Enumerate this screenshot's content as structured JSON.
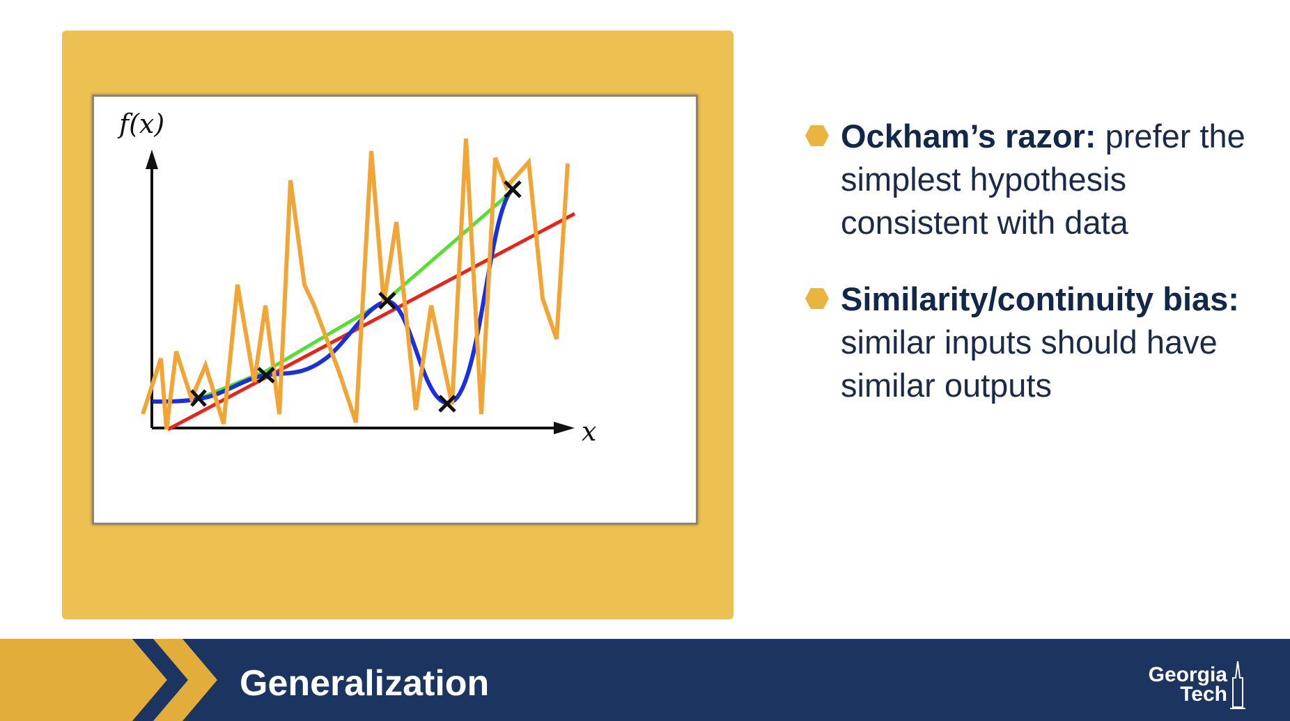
{
  "figure": {
    "y_axis_label": "f(x)",
    "x_axis_label": "x",
    "colors": {
      "axes": "#111111",
      "noisy_fit": "#f0a535",
      "linear_fit": "#e8231a",
      "piecewise_fit": "#55e02e",
      "smooth_fit": "#1a2fe0",
      "data_points": "#111111"
    }
  },
  "bullets": [
    {
      "term": "Ockham’s razor:",
      "text": " prefer the simplest hypothesis consistent with data"
    },
    {
      "term": "Similarity/continuity bias:",
      "text": " similar inputs should have similar outputs"
    }
  ],
  "footer": {
    "title": "Generalization",
    "logo_line1": "Georgia",
    "logo_line2": "Tech",
    "icon": "georgia-tech-tower-icon"
  },
  "colors": {
    "accent_gold": "#ecc051",
    "navy": "#1b3560"
  }
}
